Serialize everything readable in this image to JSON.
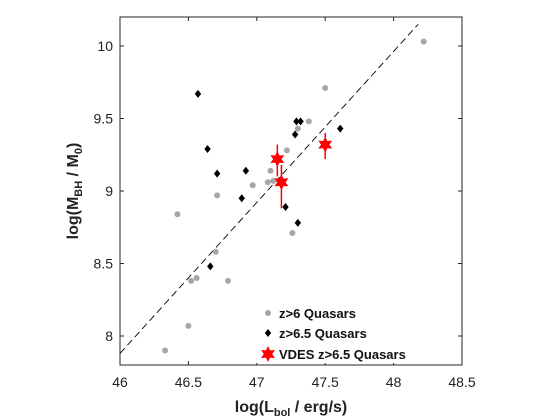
{
  "chart_data": {
    "type": "scatter",
    "xlim": [
      46,
      48.5
    ],
    "ylim": [
      7.8,
      10.2
    ],
    "x_ticks": [
      "46",
      "46.5",
      "47",
      "47.5",
      "48",
      "48.5"
    ],
    "y_ticks": [
      "8",
      "8.5",
      "9",
      "9.5",
      "10"
    ],
    "xlabel": {
      "main": "log(L",
      "sub": "bol",
      "rest": " / erg/s)"
    },
    "ylabel": {
      "main": "log(M",
      "sub": "BH",
      "mid": " / M",
      "sub2": "0",
      "rest": ")"
    },
    "grid": false,
    "legend_position": "bottom-right",
    "series": [
      {
        "name": "z>6 Quasars",
        "marker": "circle",
        "color": "#a6a6a6",
        "points": [
          [
            46.33,
            7.9
          ],
          [
            46.42,
            8.84
          ],
          [
            46.5,
            8.07
          ],
          [
            46.52,
            8.38
          ],
          [
            46.56,
            8.4
          ],
          [
            46.7,
            8.58
          ],
          [
            46.71,
            8.97
          ],
          [
            46.79,
            8.38
          ],
          [
            46.97,
            9.04
          ],
          [
            47.08,
            9.06
          ],
          [
            47.1,
            9.14
          ],
          [
            47.12,
            9.07
          ],
          [
            47.22,
            9.28
          ],
          [
            47.26,
            8.71
          ],
          [
            47.3,
            9.43
          ],
          [
            47.38,
            9.48
          ],
          [
            47.5,
            9.71
          ],
          [
            48.22,
            10.03
          ]
        ]
      },
      {
        "name": "z>6.5 Quasars",
        "marker": "diamond",
        "color": "#000000",
        "points": [
          [
            46.57,
            9.67
          ],
          [
            46.64,
            9.29
          ],
          [
            46.66,
            8.48
          ],
          [
            46.71,
            9.12
          ],
          [
            46.89,
            8.95
          ],
          [
            46.92,
            9.14
          ],
          [
            47.21,
            8.89
          ],
          [
            47.28,
            9.39
          ],
          [
            47.29,
            9.48
          ],
          [
            47.32,
            9.48
          ],
          [
            47.3,
            8.78
          ],
          [
            47.61,
            9.43
          ]
        ]
      },
      {
        "name": "VDES z>6.5 Quasars",
        "marker": "hexagram",
        "color": "#ff0000",
        "points": [
          {
            "x": 47.15,
            "y": 9.22,
            "yerr_low": 0.12,
            "yerr_high": 0.1
          },
          {
            "x": 47.18,
            "y": 9.06,
            "yerr_low": 0.18,
            "yerr_high": 0.12
          },
          {
            "x": 47.5,
            "y": 9.32,
            "yerr_low": 0.1,
            "yerr_high": 0.08
          }
        ]
      }
    ],
    "fit_line": {
      "style": "dashed",
      "color": "#000000",
      "points": [
        [
          46,
          7.88
        ],
        [
          48.18,
          10.15
        ]
      ]
    }
  }
}
